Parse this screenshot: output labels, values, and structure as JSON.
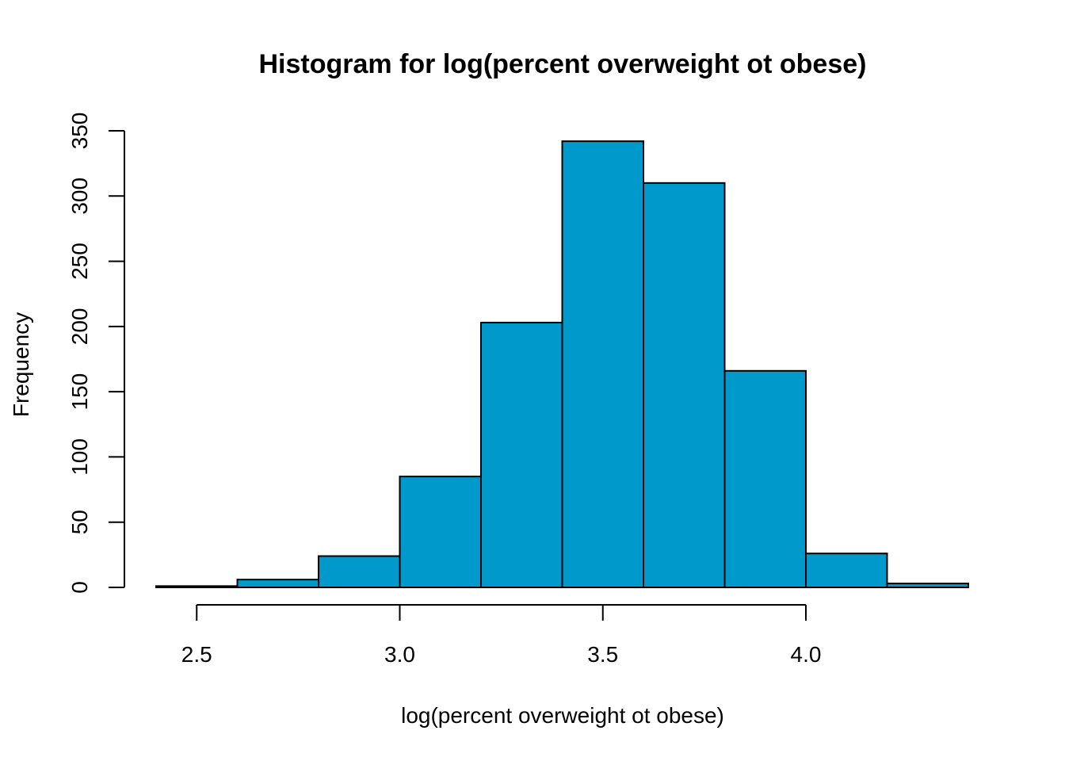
{
  "chart_data": {
    "type": "bar",
    "title": "Histogram for log(percent overweight ot obese)",
    "xlabel": "log(percent overweight ot obese)",
    "ylabel": "Frequency",
    "bins": [
      {
        "start": 2.4,
        "end": 2.6,
        "count": 1
      },
      {
        "start": 2.6,
        "end": 2.8,
        "count": 6
      },
      {
        "start": 2.8,
        "end": 3.0,
        "count": 24
      },
      {
        "start": 3.0,
        "end": 3.2,
        "count": 85
      },
      {
        "start": 3.2,
        "end": 3.4,
        "count": 203
      },
      {
        "start": 3.4,
        "end": 3.6,
        "count": 342
      },
      {
        "start": 3.6,
        "end": 3.8,
        "count": 310
      },
      {
        "start": 3.8,
        "end": 4.0,
        "count": 166
      },
      {
        "start": 4.0,
        "end": 4.2,
        "count": 26
      },
      {
        "start": 4.2,
        "end": 4.4,
        "count": 3
      }
    ],
    "x_ticks": [
      {
        "value": 2.5,
        "label": "2.5"
      },
      {
        "value": 3.0,
        "label": "3.0"
      },
      {
        "value": 3.5,
        "label": "3.5"
      },
      {
        "value": 4.0,
        "label": "4.0"
      }
    ],
    "y_ticks": [
      {
        "value": 0,
        "label": "0"
      },
      {
        "value": 50,
        "label": "50"
      },
      {
        "value": 100,
        "label": "100"
      },
      {
        "value": 150,
        "label": "150"
      },
      {
        "value": 200,
        "label": "200"
      },
      {
        "value": 250,
        "label": "250"
      },
      {
        "value": 300,
        "label": "300"
      },
      {
        "value": 350,
        "label": "350"
      }
    ],
    "xlim": [
      2.4,
      4.4
    ],
    "ylim": [
      0,
      350
    ],
    "bar_color": "#0099CC",
    "edge_color": "#000000",
    "grid": false,
    "legend": "none"
  }
}
